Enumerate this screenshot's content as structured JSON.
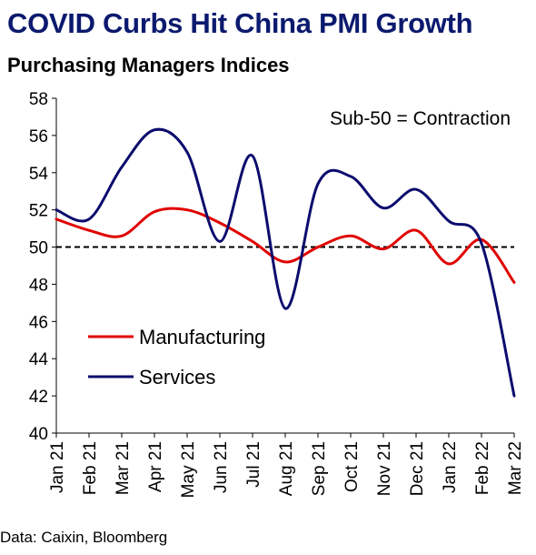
{
  "title": "COVID Curbs Hit China PMI Growth",
  "subtitle": "Purchasing Managers Indices",
  "source": "Data: Caixin, Bloomberg",
  "colors": {
    "title": "#0b1a6e",
    "manufacturing": "#e00000",
    "services": "#0b0b6e",
    "reference_line": "#000000"
  },
  "chart_data": {
    "type": "line",
    "title": "Purchasing Managers Indices",
    "annotation": "Sub-50 = Contraction",
    "xlabel": "",
    "ylabel": "",
    "categories": [
      "Jan 21",
      "Feb 21",
      "Mar 21",
      "Apr 21",
      "May 21",
      "Jun 21",
      "Jul 21",
      "Aug 21",
      "Sep 21",
      "Oct 21",
      "Nov 21",
      "Dec 21",
      "Jan 22",
      "Feb 22",
      "Mar 22"
    ],
    "y_ticks": [
      40,
      42,
      44,
      46,
      48,
      50,
      52,
      54,
      56,
      58
    ],
    "ylim": [
      40,
      58
    ],
    "reference_line": {
      "y": 50,
      "style": "dashed"
    },
    "legend_position": "bottom-left",
    "grid": false,
    "series": [
      {
        "name": "Manufacturing",
        "color": "#e00000",
        "values": [
          51.5,
          50.9,
          50.6,
          51.9,
          52.0,
          51.3,
          50.3,
          49.2,
          50.0,
          50.6,
          49.9,
          50.9,
          49.1,
          50.4,
          48.1
        ]
      },
      {
        "name": "Services",
        "color": "#0b0b6e",
        "values": [
          52.0,
          51.5,
          54.3,
          56.3,
          55.1,
          50.3,
          54.9,
          46.7,
          53.4,
          53.8,
          52.1,
          53.1,
          51.4,
          50.2,
          42.0
        ]
      }
    ]
  }
}
